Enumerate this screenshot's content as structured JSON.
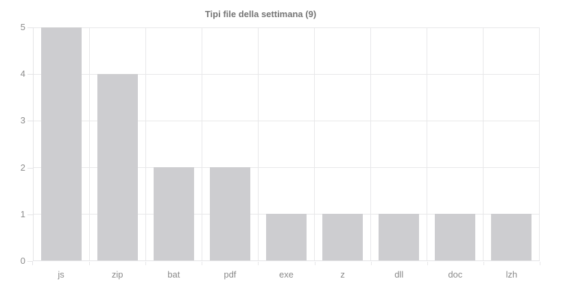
{
  "chart_data": {
    "type": "bar",
    "title": "Tipi file della settimana (9)",
    "categories": [
      "js",
      "zip",
      "bat",
      "pdf",
      "exe",
      "z",
      "dll",
      "doc",
      "lzh"
    ],
    "values": [
      5,
      4,
      2,
      2,
      1,
      1,
      1,
      1,
      1
    ],
    "xlabel": "",
    "ylabel": "",
    "ylim": [
      0,
      5
    ],
    "yticks": [
      0,
      1,
      2,
      3,
      4,
      5
    ],
    "grid": true,
    "legend": false,
    "colors": {
      "bar": "#cdcdd0",
      "grid": "#e7e7e9",
      "axis": "#e3e3e5",
      "axis_label": "#8a8a8a",
      "title": "#757575",
      "background": "#ffffff"
    }
  }
}
